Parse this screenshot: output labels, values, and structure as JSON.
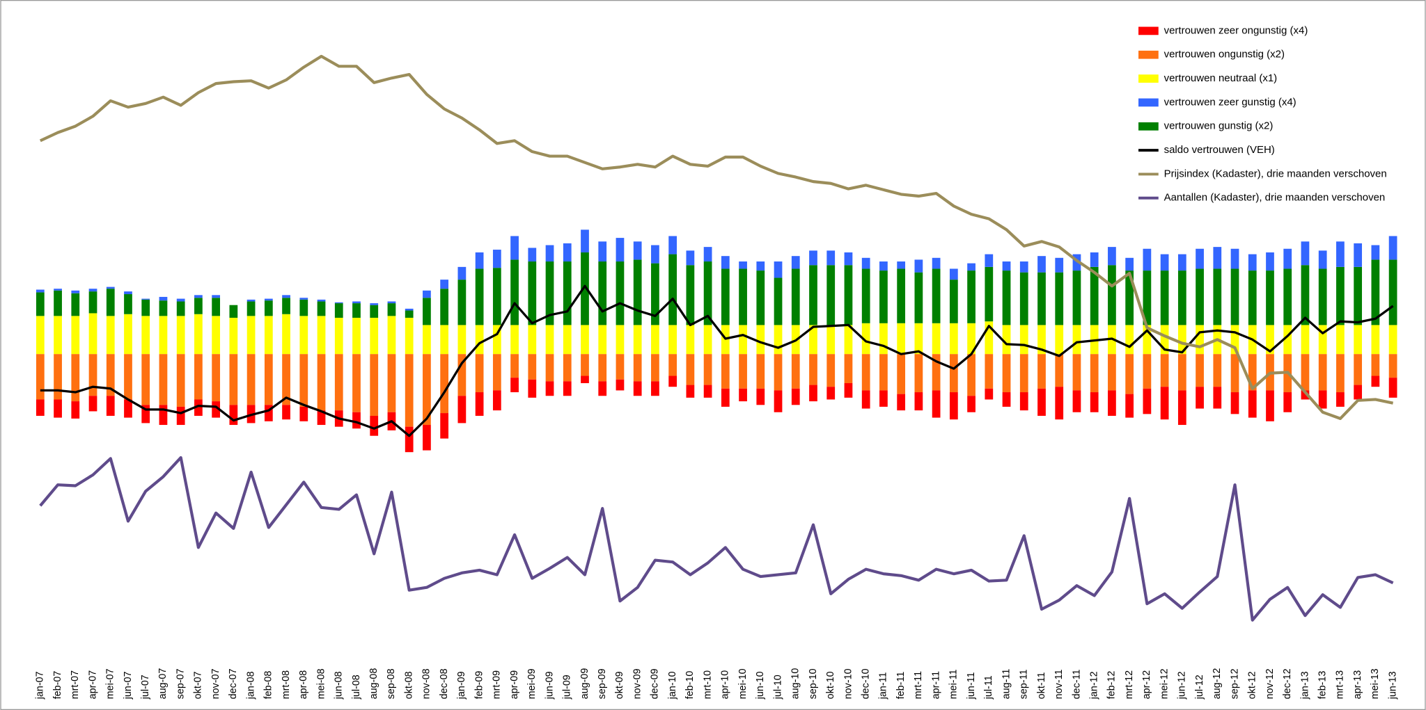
{
  "chart_data": {
    "type": "bar",
    "categories": [
      "jan-07",
      "feb-07",
      "mrt-07",
      "apr-07",
      "mei-07",
      "jun-07",
      "jul-07",
      "aug-07",
      "sep-07",
      "okt-07",
      "nov-07",
      "dec-07",
      "jan-08",
      "feb-08",
      "mrt-08",
      "apr-08",
      "mei-08",
      "jun-08",
      "jul-08",
      "aug-08",
      "sep-08",
      "okt-08",
      "nov-08",
      "dec-08",
      "jan-09",
      "feb-09",
      "mrt-09",
      "apr-09",
      "mei-09",
      "jun-09",
      "jul-09",
      "aug-09",
      "sep-09",
      "okt-09",
      "nov-09",
      "dec-09",
      "jan-10",
      "feb-10",
      "mrt-10",
      "apr-10",
      "mei-10",
      "jun-10",
      "jul-10",
      "aug-10",
      "sep-10",
      "okt-10",
      "nov-10",
      "dec-10",
      "jan-11",
      "feb-11",
      "mrt-11",
      "apr-11",
      "mei-11",
      "jun-11",
      "jul-11",
      "aug-11",
      "sep-11",
      "okt-11",
      "nov-11",
      "dec-11",
      "jan-12",
      "feb-12",
      "mrt-12",
      "apr-12",
      "mei-12",
      "jun-12",
      "jul-12",
      "aug-12",
      "sep-12",
      "okt-12",
      "nov-12",
      "dec-12",
      "jan-13",
      "feb-13",
      "mrt-13",
      "apr-13",
      "mei-13",
      "jun-13"
    ],
    "ylim": [
      -330,
      390
    ],
    "legend": "top-right",
    "series": [
      {
        "name": "vertrouwen zeer ongunstig (x4)",
        "color": "#ff0000",
        "type": "bar",
        "values": [
          -18,
          -20,
          -19,
          -17,
          -22,
          -20,
          -20,
          -22,
          -20,
          -18,
          -18,
          -22,
          -20,
          -18,
          -16,
          -16,
          -16,
          -18,
          -18,
          -22,
          -20,
          -28,
          -28,
          -28,
          -30,
          -26,
          -22,
          -16,
          -20,
          -16,
          -16,
          -8,
          -16,
          -12,
          -16,
          -16,
          -12,
          -14,
          -14,
          -20,
          -14,
          -18,
          -24,
          -18,
          -18,
          -14,
          -16,
          -20,
          -18,
          -18,
          -20,
          -30,
          -30,
          -18,
          -12,
          -16,
          -20,
          -30,
          -36,
          -24,
          -22,
          -28,
          -26,
          -28,
          -36,
          -38,
          -24,
          -24,
          -24,
          -30,
          -34,
          -22,
          -10,
          -20,
          -16,
          -16,
          -12,
          -22
        ]
      },
      {
        "name": "vertrouwen onguns­tig (x2)",
        "color": "#ff7010",
        "type": "bar",
        "values": [
          -50,
          -50,
          -52,
          -46,
          -46,
          -50,
          -56,
          -56,
          -58,
          -50,
          -52,
          -56,
          -56,
          -56,
          -56,
          -58,
          -62,
          -62,
          -64,
          -68,
          -64,
          -80,
          -78,
          -65,
          -46,
          -42,
          -40,
          -26,
          -28,
          -30,
          -30,
          -24,
          -30,
          -28,
          -30,
          -30,
          -24,
          -34,
          -34,
          -38,
          -38,
          -38,
          -40,
          -38,
          -34,
          -36,
          -32,
          -40,
          -40,
          -44,
          -42,
          -40,
          -42,
          -46,
          -38,
          -42,
          -42,
          -38,
          -36,
          -40,
          -42,
          -40,
          -44,
          -38,
          -36,
          -40,
          -36,
          -36,
          -42,
          -40,
          -40,
          -42,
          -40,
          -40,
          -42,
          -34,
          -24,
          -26
        ]
      },
      {
        "name": "vertrouwen neutraal (x1)",
        "color": "#ffff00",
        "type": "bar",
        "values": [
          42,
          42,
          42,
          45,
          42,
          44,
          42,
          42,
          42,
          44,
          42,
          40,
          42,
          42,
          44,
          42,
          42,
          40,
          40,
          40,
          42,
          40,
          32,
          32,
          32,
          32,
          32,
          32,
          32,
          32,
          32,
          32,
          32,
          32,
          32,
          32,
          32,
          32,
          32,
          32,
          32,
          32,
          32,
          32,
          32,
          32,
          32,
          34,
          34,
          34,
          34,
          34,
          34,
          34,
          36,
          32,
          32,
          32,
          32,
          32,
          32,
          32,
          32,
          32,
          32,
          32,
          32,
          32,
          32,
          32,
          32,
          32,
          32,
          32,
          32,
          32,
          32,
          32
        ]
      },
      {
        "name": "vertrouwen zeer guns­tig (x4)",
        "color": "#3366ff",
        "type": "bar",
        "values": [
          3,
          2,
          3,
          3,
          2,
          3,
          1,
          4,
          3,
          3,
          3,
          0,
          2,
          2,
          3,
          2,
          2,
          1,
          2,
          2,
          2,
          2,
          8,
          10,
          14,
          18,
          20,
          26,
          15,
          18,
          20,
          25,
          22,
          26,
          20,
          20,
          20,
          16,
          16,
          14,
          8,
          10,
          18,
          14,
          16,
          16,
          14,
          12,
          10,
          8,
          14,
          12,
          12,
          8,
          14,
          10,
          12,
          18,
          16,
          18,
          16,
          20,
          14,
          24,
          18,
          18,
          22,
          24,
          22,
          18,
          20,
          22,
          26,
          20,
          28,
          26,
          16,
          26
        ]
      },
      {
        "name": "vertrouwen guns­tig (x2)",
        "color": "#008000",
        "type": "bar",
        "values": [
          26,
          28,
          25,
          24,
          30,
          22,
          18,
          17,
          16,
          18,
          20,
          14,
          16,
          17,
          18,
          18,
          16,
          16,
          16,
          14,
          14,
          8,
          30,
          40,
          50,
          62,
          63,
          72,
          70,
          70,
          70,
          80,
          70,
          70,
          72,
          68,
          78,
          66,
          70,
          62,
          62,
          60,
          52,
          62,
          66,
          66,
          66,
          60,
          58,
          60,
          56,
          60,
          48,
          58,
          60,
          60,
          58,
          58,
          58,
          60,
          64,
          66,
          60,
          60,
          60,
          60,
          62,
          62,
          62,
          60,
          60,
          62,
          66,
          62,
          64,
          64,
          72,
          72
        ]
      },
      {
        "name": "saldo vertrouwen (VEH)",
        "color": "#000000",
        "type": "line",
        "values": [
          -40,
          -40,
          -42,
          -36,
          -38,
          -50,
          -61,
          -61,
          -65,
          -57,
          -58,
          -73,
          -67,
          -62,
          -48,
          -56,
          -63,
          -71,
          -75,
          -82,
          -74,
          -90,
          -71,
          -42,
          -10,
          12,
          22,
          56,
          34,
          43,
          47,
          75,
          47,
          56,
          48,
          42,
          61,
          32,
          42,
          17,
          21,
          13,
          7,
          15,
          30,
          31,
          32,
          14,
          9,
          0,
          3,
          -8,
          -16,
          0,
          31,
          11,
          10,
          5,
          -2,
          13,
          15,
          17,
          8,
          26,
          5,
          2,
          24,
          26,
          24,
          16,
          3,
          20,
          40,
          23,
          36,
          35,
          39,
          53
        ]
      },
      {
        "name": "Prijsindex (Kadaster), drie maanden verschoven",
        "color": "#9b8d5a",
        "type": "line",
        "values": [
          235,
          244,
          251,
          262,
          279,
          272,
          276,
          283,
          274,
          288,
          298,
          300,
          301,
          293,
          302,
          316,
          328,
          317,
          317,
          299,
          304,
          308,
          286,
          270,
          260,
          247,
          232,
          235,
          223,
          218,
          218,
          211,
          204,
          206,
          209,
          206,
          218,
          209,
          207,
          217,
          217,
          207,
          199,
          195,
          190,
          188,
          182,
          186,
          181,
          176,
          174,
          177,
          163,
          154,
          149,
          137,
          119,
          124,
          118,
          103,
          90,
          75,
          89,
          29,
          20,
          12,
          8,
          16,
          7,
          -38,
          -21,
          -20,
          -42,
          -64,
          -71,
          -51,
          -50,
          -54
        ]
      },
      {
        "name": "Aantallen (Kadaster), drie maanden verschoven",
        "color": "#5f4b8b",
        "type": "line",
        "values": [
          -167,
          -144,
          -145,
          -133,
          -115,
          -184,
          -151,
          -135,
          -114,
          -213,
          -175,
          -192,
          -130,
          -191,
          -166,
          -141,
          -169,
          -171,
          -155,
          -220,
          -152,
          -260,
          -257,
          -247,
          -241,
          -238,
          -243,
          -199,
          -247,
          -236,
          -224,
          -243,
          -170,
          -272,
          -257,
          -227,
          -229,
          -243,
          -230,
          -213,
          -237,
          -245,
          -243,
          -241,
          -188,
          -264,
          -248,
          -237,
          -242,
          -244,
          -249,
          -237,
          -242,
          -238,
          -250,
          -249,
          -200,
          -281,
          -271,
          -255,
          -266,
          -240,
          -159,
          -275,
          -264,
          -280,
          -262,
          -245,
          -144,
          -293,
          -270,
          -257,
          -288,
          -265,
          -279,
          -246,
          -243,
          -252
        ]
      }
    ]
  }
}
